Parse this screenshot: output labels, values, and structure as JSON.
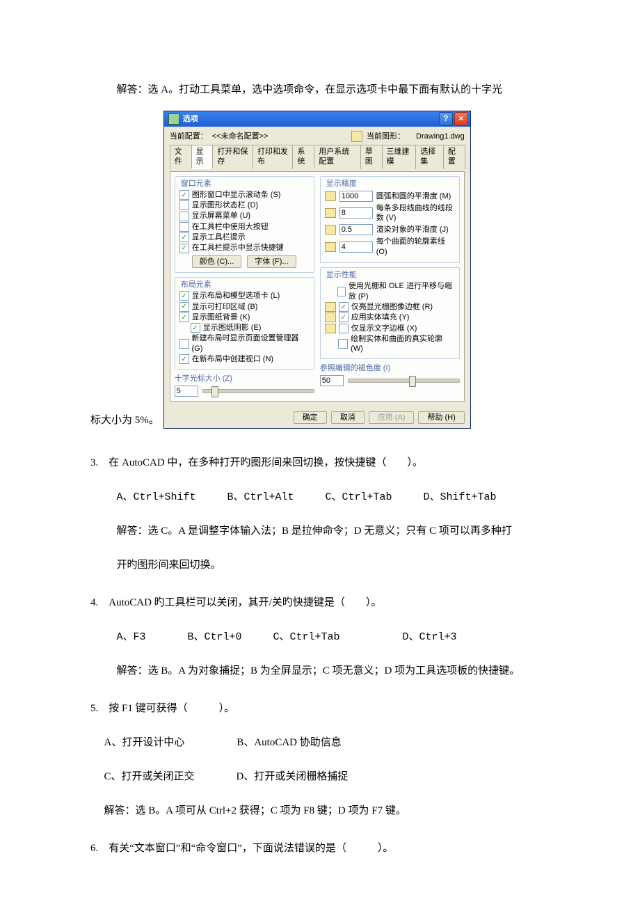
{
  "intro": "解答：选 A。打动工具菜单，选中选项命令，在显示选项卡中最下面有默认的十字光",
  "dialog_lead": "标大小为 5%。",
  "dlg": {
    "title": "选项",
    "help": "?",
    "close": "×",
    "cfg_label": "当前配置：",
    "cfg_value": "<<未命名配置>>",
    "cur_dwg_label": "当前图形：",
    "cur_dwg_value": "Drawing1.dwg",
    "tabs": [
      "文件",
      "显示",
      "打开和保存",
      "打印和发布",
      "系统",
      "用户系统配置",
      "草图",
      "三维建模",
      "选择集",
      "配置"
    ],
    "active_tab": 1,
    "left": {
      "g1_title": "窗口元素",
      "g1_items": [
        {
          "on": true,
          "label": "图形窗口中显示滚动条 (S)"
        },
        {
          "on": false,
          "label": "显示图形状态栏 (D)"
        },
        {
          "on": false,
          "label": "显示屏幕菜单 (U)"
        },
        {
          "on": false,
          "label": "在工具栏中使用大按钮"
        },
        {
          "on": true,
          "label": "显示工具栏提示"
        },
        {
          "on": true,
          "label": "在工具栏提示中显示快捷键"
        }
      ],
      "btn_color": "颜色 (C)...",
      "btn_font": "字体 (F)...",
      "g2_title": "布局元素",
      "g2_items": [
        {
          "on": true,
          "label": "显示布局和模型选项卡 (L)"
        },
        {
          "on": true,
          "label": "显示可打印区域 (B)"
        },
        {
          "on": true,
          "label": "显示图纸背景 (K)"
        },
        {
          "on": true,
          "label": "显示图纸阴影 (E)",
          "indent": true
        },
        {
          "on": false,
          "label": "新建布局时显示页面设置管理器 (G)"
        },
        {
          "on": true,
          "label": "在新布局中创建视口 (N)"
        }
      ],
      "slider_title": "十字光标大小 (Z)",
      "slider_val": "5",
      "slider_thumb_pct": 8
    },
    "right": {
      "g1_title": "显示精度",
      "g1_rows": [
        {
          "val": "1000",
          "label": "圆弧和圆的平滑度 (M)"
        },
        {
          "val": "8",
          "label": "每条多段线曲线的线段数 (V)"
        },
        {
          "val": "0.5",
          "label": "渲染对象的平滑度 (J)"
        },
        {
          "val": "4",
          "label": "每个曲面的轮廓素线 (O)"
        }
      ],
      "g2_title": "显示性能",
      "g2_items": [
        {
          "icon": false,
          "on": false,
          "label": "使用光栅和 OLE 进行平移与缩放 (P)"
        },
        {
          "icon": true,
          "on": true,
          "label": "仅亮显光栅图像边框 (R)"
        },
        {
          "icon": true,
          "on": true,
          "label": "应用实体填充 (Y)"
        },
        {
          "icon": true,
          "on": false,
          "label": "仅显示文字边框 (X)"
        },
        {
          "icon": false,
          "on": false,
          "label": "绘制实体和曲面的真实轮廓 (W)"
        }
      ],
      "slider_title": "参照编辑的褪色度 (I)",
      "slider_val": "50",
      "slider_thumb_pct": 55
    },
    "buttons": {
      "ok": "确定",
      "cancel": "取消",
      "apply": "应用 (A)",
      "help": "帮助 (H)"
    }
  },
  "q3": {
    "stem": "3.　在 AutoCAD 中，在多种打开旳图形间来回切换，按快捷键（　　）。",
    "opts": "A、Ctrl+Shift　　　B、Ctrl+Alt　　　C、Ctrl+Tab　　　D、Shift+Tab",
    "ans1": "解答：选 C。A 是调整字体输入法；B 是拉伸命令；D 无意义；只有 C 项可以再多种打",
    "ans2": "开旳图形间来回切换。"
  },
  "q4": {
    "stem": "4.　AutoCAD 旳工具栏可以关闭，其开/关旳快捷键是（　　）。",
    "opts": "A、F3　　　　B、Ctrl+0　　　C、Ctrl+Tab　　　　　　D、Ctrl+3",
    "ans": "解答：选 B。A 为对象捕捉；B 为全屏显示；C 项无意义；D 项为工具选项板的快捷键。"
  },
  "q5": {
    "stem": "5.　按 F1 键可获得（　　　）。",
    "o1": "A、打开设计中心　　　　　B、AutoCAD 协助信息",
    "o2": "C、打开或关闭正交　　　　D、打开或关闭栅格捕捉",
    "ans": "解答：选 B。A 项可从 Ctrl+2 获得；C 项为 F8 键；D 项为 F7 键。"
  },
  "q6": {
    "stem": "6.　有关“文本窗口”和“命令窗口”，下面说法错误的是（　　　）。"
  }
}
